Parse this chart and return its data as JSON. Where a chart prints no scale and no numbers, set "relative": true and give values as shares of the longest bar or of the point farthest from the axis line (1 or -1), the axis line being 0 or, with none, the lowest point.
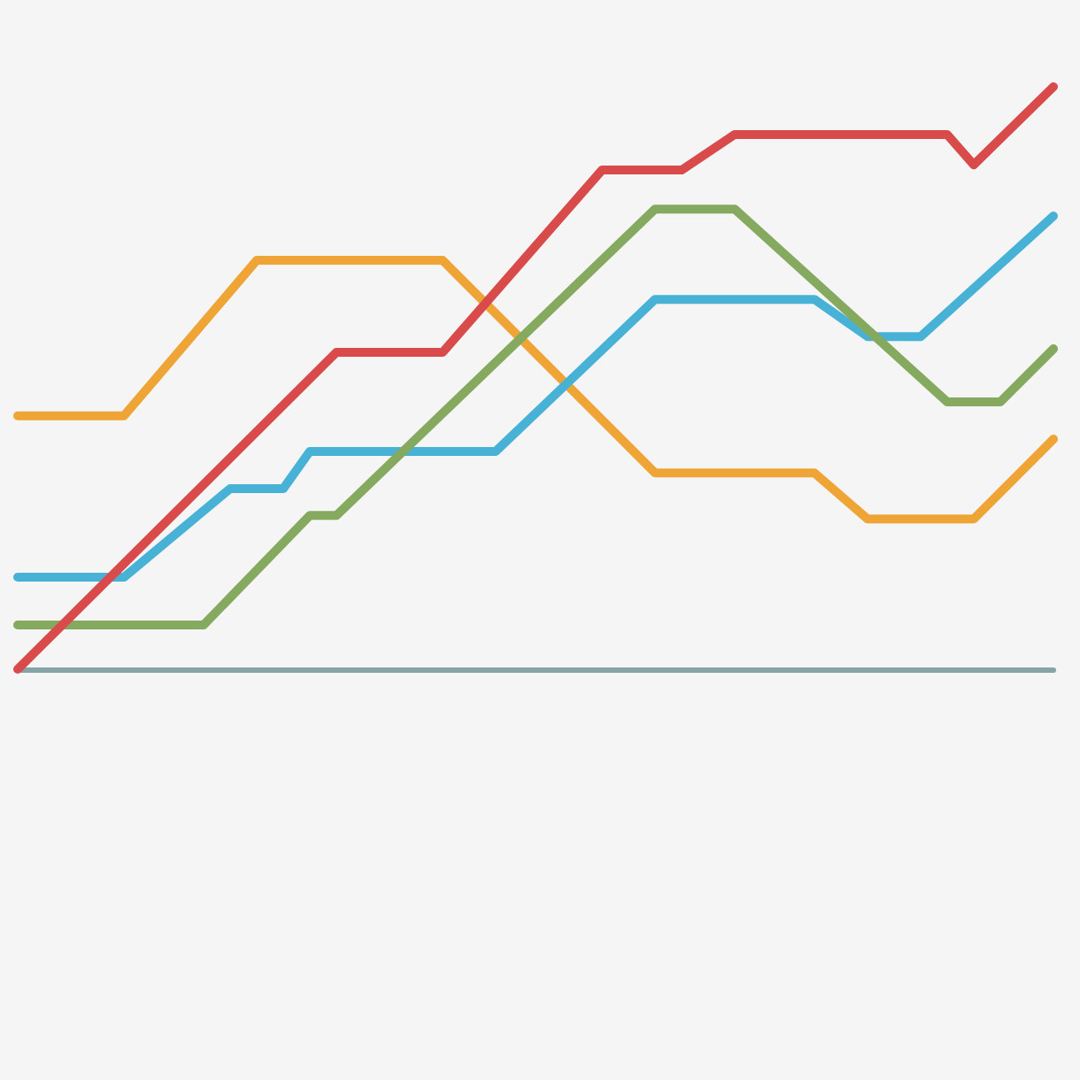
{
  "chart_data": {
    "type": "line",
    "relative": true,
    "marker": "none",
    "line_style": "solid",
    "categories": [
      null,
      null,
      null,
      null,
      null,
      null,
      null,
      null,
      null,
      null,
      null,
      null,
      null,
      null,
      null,
      null,
      null,
      null,
      null,
      null,
      null,
      null,
      null,
      null,
      null,
      null,
      null,
      null,
      null,
      null,
      null,
      null,
      null,
      null,
      null,
      null,
      null,
      null,
      null,
      null
    ],
    "series": [
      {
        "color": "#eea536",
        "values": [
          0.435,
          null,
          null,
          null,
          0.435,
          null,
          null,
          null,
          null,
          0.702,
          null,
          null,
          null,
          null,
          null,
          null,
          0.702,
          null,
          null,
          null,
          null,
          null,
          null,
          null,
          0.337,
          null,
          null,
          null,
          null,
          null,
          0.337,
          null,
          0.258,
          null,
          null,
          null,
          0.258,
          null,
          null,
          0.395
        ]
      },
      {
        "color": "#48b1d6",
        "values": [
          0.158,
          null,
          null,
          null,
          0.158,
          null,
          null,
          null,
          0.31,
          null,
          0.31,
          0.374,
          null,
          null,
          null,
          null,
          null,
          null,
          0.374,
          null,
          null,
          null,
          null,
          null,
          0.635,
          null,
          null,
          null,
          null,
          null,
          0.635,
          null,
          0.571,
          null,
          0.571,
          null,
          null,
          null,
          null,
          0.778
        ]
      },
      {
        "color": "#86a960",
        "values": [
          0.076,
          null,
          null,
          null,
          null,
          null,
          null,
          0.076,
          null,
          null,
          null,
          0.264,
          0.264,
          null,
          null,
          null,
          null,
          null,
          null,
          null,
          null,
          null,
          null,
          null,
          0.79,
          null,
          null,
          0.79,
          null,
          null,
          null,
          null,
          null,
          null,
          null,
          0.459,
          null,
          0.459,
          null,
          0.55
        ]
      },
      {
        "color": "#d94b4b",
        "values": [
          0,
          null,
          null,
          null,
          null,
          null,
          null,
          null,
          null,
          null,
          null,
          null,
          0.544,
          null,
          null,
          null,
          0.544,
          null,
          null,
          null,
          null,
          null,
          0.857,
          null,
          null,
          0.857,
          null,
          0.918,
          null,
          null,
          null,
          null,
          null,
          null,
          null,
          0.918,
          0.866,
          null,
          null,
          1
        ]
      }
    ]
  }
}
